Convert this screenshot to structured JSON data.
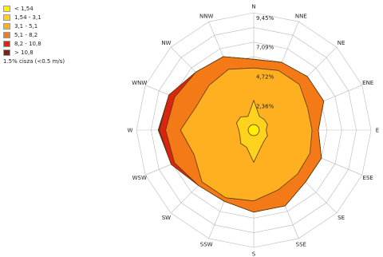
{
  "chart_data": {
    "type": "wind-rose",
    "directions": [
      "N",
      "NNE",
      "NE",
      "ENE",
      "E",
      "ESE",
      "SE",
      "SSE",
      "S",
      "SSW",
      "SW",
      "WSW",
      "W",
      "WNW",
      "NW",
      "NNW"
    ],
    "ring_labels": [
      "2,36%",
      "4,72%",
      "7,09%",
      "9,45%"
    ],
    "ring_values": [
      2.36,
      4.72,
      7.09,
      9.45
    ],
    "rmax": 9.45,
    "legend": [
      "< 1,54",
      "1,54 - 3,1",
      "3,1 - 5,1",
      "5,1 - 8,2",
      "8,2 - 10,8",
      "> 10,8"
    ],
    "calm": "1.5% cisza (<0.5 m/s)",
    "series": [
      {
        "name": "< 1,54",
        "color": "#ffef00",
        "values": [
          0.45,
          0.45,
          0.45,
          0.45,
          0.45,
          0.45,
          0.45,
          0.45,
          0.45,
          0.45,
          0.45,
          0.45,
          0.45,
          0.45,
          0.45,
          0.45
        ]
      },
      {
        "name": "1,54 - 3,1",
        "color": "#ffd21e",
        "values": [
          2.4,
          1.2,
          1.2,
          1.2,
          1.0,
          1.2,
          1.2,
          1.5,
          2.6,
          1.5,
          1.5,
          1.2,
          1.2,
          1.5,
          1.5,
          1.2
        ]
      },
      {
        "name": "3,1 - 5,1",
        "color": "#ffb020",
        "values": [
          5.0,
          5.2,
          5.2,
          4.7,
          4.7,
          4.9,
          5.0,
          5.2,
          5.7,
          5.9,
          5.9,
          5.2,
          5.9,
          5.0,
          5.1,
          5.3
        ]
      },
      {
        "name": "5,1 - 8,2",
        "color": "#f47a17",
        "values": [
          5.7,
          5.9,
          6.1,
          6.1,
          5.2,
          5.9,
          5.9,
          6.6,
          6.6,
          6.2,
          6.3,
          6.9,
          7.1,
          6.9,
          6.6,
          6.4
        ]
      },
      {
        "name": "8,2 - 10,8",
        "color": "#dd2410",
        "values": [
          5.7,
          5.9,
          6.1,
          6.1,
          5.2,
          5.9,
          5.9,
          6.6,
          6.6,
          6.2,
          6.3,
          7.2,
          7.6,
          7.4,
          6.6,
          6.4
        ]
      },
      {
        "name": "> 10,8",
        "color": "#7a2410",
        "values": [
          5.7,
          5.9,
          6.1,
          6.1,
          5.2,
          5.9,
          5.9,
          6.6,
          6.6,
          6.2,
          6.3,
          7.2,
          7.7,
          7.4,
          6.6,
          6.4
        ]
      }
    ]
  }
}
